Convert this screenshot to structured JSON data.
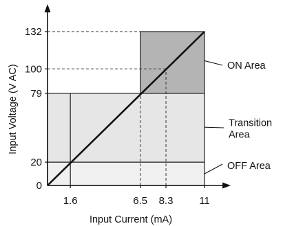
{
  "chart_data": {
    "type": "area",
    "title": "",
    "xlabel": "Input Current (mA)",
    "ylabel": "Input Voltage (V AC)",
    "xlim": [
      0,
      12.5
    ],
    "ylim": [
      0,
      145
    ],
    "x_ticks": [
      {
        "value": 1.6,
        "label": "1.6"
      },
      {
        "value": 6.5,
        "label": "6.5"
      },
      {
        "value": 8.3,
        "label": "8.3"
      },
      {
        "value": 11,
        "label": "11"
      }
    ],
    "y_ticks": [
      {
        "value": 0,
        "label": "0"
      },
      {
        "value": 20,
        "label": "20"
      },
      {
        "value": 79,
        "label": "79"
      },
      {
        "value": 100,
        "label": "100"
      },
      {
        "value": 132,
        "label": "132"
      }
    ],
    "regions": [
      {
        "name": "OFF Area",
        "x": [
          0,
          11
        ],
        "y": [
          0,
          20
        ],
        "color": "#f0f0f0"
      },
      {
        "name": "Transition Area",
        "x": [
          0,
          11
        ],
        "y": [
          20,
          79
        ],
        "color": "#e6e6e6"
      },
      {
        "name": "ON Area",
        "x": [
          6.5,
          11
        ],
        "y": [
          79,
          132
        ],
        "color": "#b4b4b4"
      }
    ],
    "region_dividers_x": [
      1.6
    ],
    "line": {
      "x": [
        0,
        11
      ],
      "y": [
        0,
        132
      ],
      "color": "#111111"
    },
    "guides": [
      {
        "from": [
          0,
          132
        ],
        "to": [
          6.5,
          132
        ]
      },
      {
        "from": [
          0,
          100
        ],
        "to": [
          8.3,
          100
        ]
      },
      {
        "from": [
          6.5,
          0
        ],
        "to": [
          6.5,
          79
        ]
      },
      {
        "from": [
          8.3,
          0
        ],
        "to": [
          8.3,
          100
        ]
      }
    ],
    "annotations": [
      {
        "text": [
          "ON Area"
        ],
        "target": [
          11,
          107
        ]
      },
      {
        "text": [
          "Transition",
          "Area"
        ],
        "target": [
          11,
          50
        ]
      },
      {
        "text": [
          "OFF Area"
        ],
        "target": [
          11,
          10
        ]
      }
    ],
    "grid": false,
    "legend": "none"
  }
}
